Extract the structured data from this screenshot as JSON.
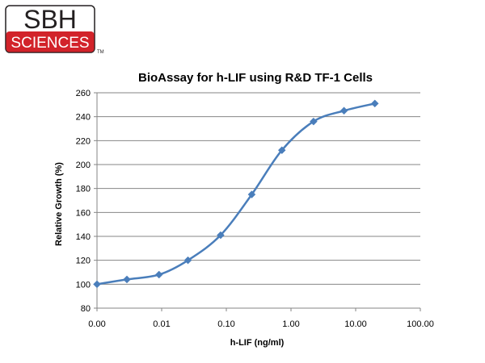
{
  "logo": {
    "line1": "SBH",
    "line2": "SCIENCES",
    "tm": "TM",
    "colors": {
      "red": "#d2232a",
      "dark": "#231f20"
    }
  },
  "chart_data": {
    "type": "line",
    "title": "BioAssay for h-LIF using R&D TF-1 Cells",
    "xlabel": "h-LIF (ng/ml)",
    "ylabel": "Relative Growth (%)",
    "x_scale": "log",
    "xlim": [
      0.001,
      100
    ],
    "ylim": [
      80,
      260
    ],
    "x_tick_values": [
      0.001,
      0.01,
      0.1,
      1,
      10,
      100
    ],
    "x_tick_labels": [
      "0.00",
      "0.01",
      "0.10",
      "1.00",
      "10.00",
      "100.00"
    ],
    "y_ticks": [
      80,
      100,
      120,
      140,
      160,
      180,
      200,
      220,
      240,
      260
    ],
    "grid": "horizontal",
    "legend": "none",
    "series": [
      {
        "color": "#4a7ebb",
        "marker": "diamond",
        "x": [
          0.001,
          0.0029,
          0.0091,
          0.0255,
          0.0815,
          0.247,
          0.723,
          2.23,
          6.6,
          19.8
        ],
        "y": [
          100,
          104,
          108,
          120,
          141,
          175,
          212,
          236,
          245,
          251
        ]
      }
    ]
  }
}
